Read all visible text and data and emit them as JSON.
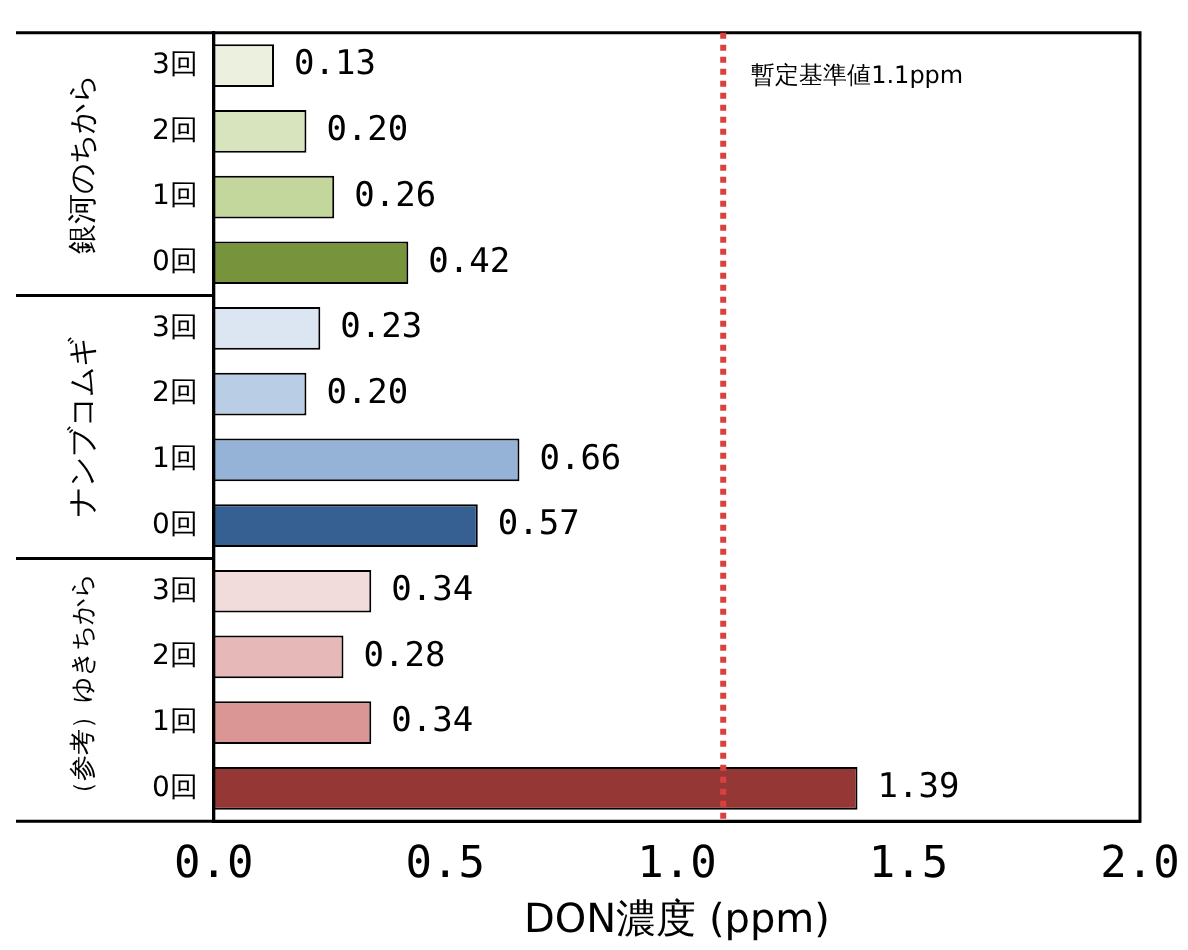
{
  "chart_data": {
    "type": "bar",
    "orientation": "horizontal",
    "xlabel": "DON濃度 (ppm)",
    "categories": [
      "3回",
      "2回",
      "1回",
      "0回",
      "3回",
      "2回",
      "1回",
      "0回",
      "3回",
      "2回",
      "1回",
      "0回"
    ],
    "values": [
      0.13,
      0.2,
      0.26,
      0.42,
      0.23,
      0.2,
      0.66,
      0.57,
      0.34,
      0.28,
      0.34,
      1.39
    ],
    "colors": [
      "#ebf1de",
      "#d7e4bd",
      "#c3d69b",
      "#77933c",
      "#dce6f2",
      "#b9cde5",
      "#95b3d7",
      "#376092",
      "#f2dcdb",
      "#e6b9b8",
      "#d99694",
      "#953735"
    ],
    "xlim": [
      0,
      2.0
    ],
    "xticks": [
      {
        "value": 0,
        "label": "0.0"
      },
      {
        "value": 0.5,
        "label": "0.5"
      },
      {
        "value": 1,
        "label": "1.0"
      },
      {
        "value": 1.5,
        "label": "1.5"
      },
      {
        "value": 2,
        "label": "2.0"
      }
    ],
    "value_labels": [
      "0.13",
      "0.20",
      "0.26",
      "0.42",
      "0.23",
      "0.20",
      "0.66",
      "0.57",
      "0.34",
      "0.28",
      "0.34",
      "1.39"
    ],
    "grid": false,
    "legend": false,
    "ref_lines": [
      {
        "axis": "x",
        "value": 1.1,
        "label": "暫定基準値1.1ppm",
        "color": "#d9413f",
        "line_style": "dotted"
      }
    ],
    "annotations": [
      "銀河のちから",
      "ナンブコムギ",
      "（参考）ゆきちから"
    ]
  }
}
